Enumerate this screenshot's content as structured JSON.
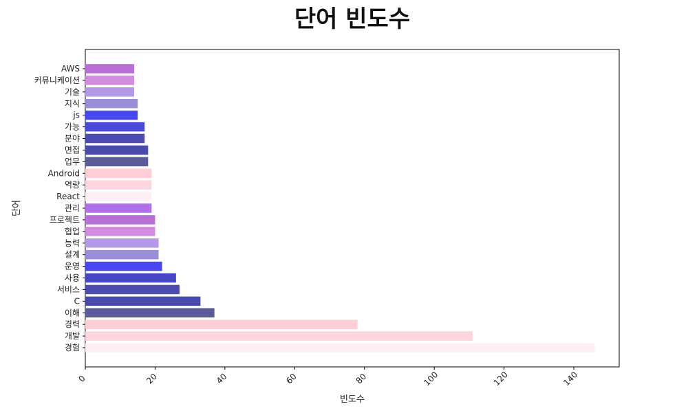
{
  "chart_data": {
    "type": "bar",
    "orientation": "horizontal",
    "title": "단어 빈도수",
    "xlabel": "빈도수",
    "ylabel": "단어",
    "xlim": [
      0,
      153
    ],
    "xticks": [
      0,
      20,
      40,
      60,
      80,
      100,
      120,
      140
    ],
    "grid": false,
    "categories": [
      "경험",
      "개발",
      "경력",
      "이해",
      "C",
      "서비스",
      "사용",
      "운영",
      "설계",
      "능력",
      "협업",
      "프로젝트",
      "관리",
      "React",
      "역량",
      "Android",
      "업무",
      "면접",
      "분야",
      "가능",
      "js",
      "지식",
      "기술",
      "커뮤니케이션",
      "AWS"
    ],
    "values": [
      146,
      111,
      78,
      37,
      33,
      27,
      26,
      22,
      21,
      21,
      20,
      20,
      19,
      19,
      19,
      19,
      18,
      18,
      17,
      17,
      15,
      15,
      14,
      14,
      14
    ],
    "colors": [
      "#fff0f5",
      "#ffd6de",
      "#ffcdd4",
      "#5b5b9a",
      "#4a4aa8",
      "#4c4cb0",
      "#4646c8",
      "#4848f0",
      "#9a8ed8",
      "#b49ae6",
      "#d28ce0",
      "#b870d8",
      "#b070e8",
      "#fff0f5",
      "#ffd6de",
      "#ffcdd4",
      "#5b5b9a",
      "#4a4aa8",
      "#4c4cb0",
      "#4a4ad8",
      "#4848f0",
      "#9a8ed8",
      "#b49ae6",
      "#d28ce0",
      "#b870d8"
    ]
  }
}
